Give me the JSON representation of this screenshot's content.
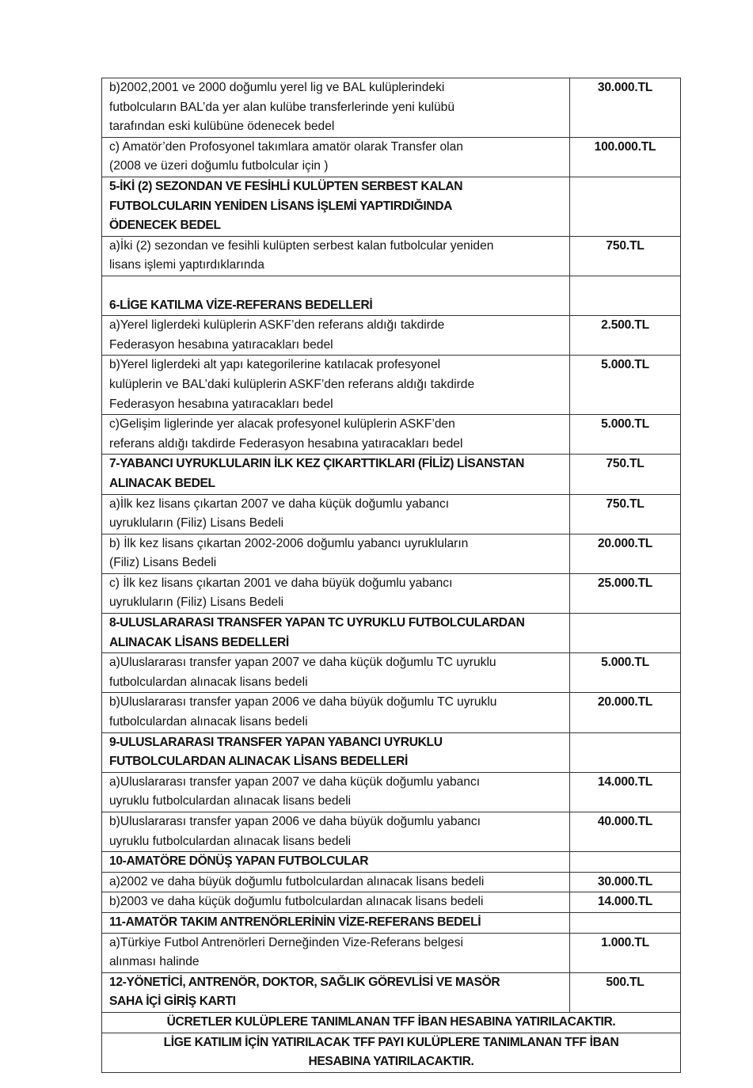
{
  "rows": [
    {
      "text": "b)2002,2001 ve 2000 doğumlu yerel lig ve BAL kulüplerindeki\nfutbolcuların BAL’da yer alan kulübe transferlerinde yeni kulübü\ntarafından eski kulübüne ödenecek bedel",
      "value": "30.000.TL",
      "bold": false
    },
    {
      "text": "c) Amatör’den Profosyonel takımlara amatör olarak Transfer olan\n(2008 ve üzeri doğumlu futbolcular için )",
      "value": "100.000.TL",
      "bold": false
    },
    {
      "text": "5-İKİ (2) SEZONDAN VE FESİHLİ KULÜPTEN SERBEST KALAN\nFUTBOLCULARIN YENİDEN LİSANS İŞLEMİ YAPTIRDIĞINDA\nÖDENECEK BEDEL",
      "value": "",
      "bold": true
    },
    {
      "text": "a)İki (2) sezondan ve fesihli kulüpten serbest kalan futbolcular yeniden\nlisans işlemi yaptırdıklarında",
      "value": "750.TL",
      "bold": false
    },
    {
      "text": "\n6-LİGE KATILMA VİZE-REFERANS BEDELLERİ",
      "value": "",
      "bold": true
    },
    {
      "text": "a)Yerel liglerdeki kulüplerin ASKF’den referans aldığı takdirde\nFederasyon hesabına yatıracakları bedel",
      "value": "2.500.TL",
      "bold": false
    },
    {
      "text": "b)Yerel liglerdeki alt yapı kategorilerine katılacak profesyonel\nkulüplerin ve BAL’daki kulüplerin ASKF’den referans aldığı takdirde\nFederasyon hesabına yatıracakları bedel",
      "value": "5.000.TL",
      "bold": false
    },
    {
      "text": "c)Gelişim liglerinde yer alacak profesyonel kulüplerin ASKF’den\nreferans aldığı takdirde Federasyon hesabına yatıracakları bedel",
      "value": "5.000.TL",
      "bold": false
    },
    {
      "text": "7-YABANCI UYRUKLULARIN İLK KEZ ÇIKARTTIKLARI (FİLİZ) LİSANSTAN\nALINACAK BEDEL",
      "value": "750.TL",
      "bold": true
    },
    {
      "text": "a)İlk kez lisans çıkartan 2007 ve daha küçük doğumlu yabancı\nuyrukluların (Filiz) Lisans Bedeli",
      "value": "750.TL",
      "bold": false
    },
    {
      "text": "b) İlk kez lisans çıkartan 2002-2006 doğumlu yabancı uyrukluların\n(Filiz) Lisans Bedeli",
      "value": "20.000.TL",
      "bold": false
    },
    {
      "text": "c) İlk kez lisans çıkartan 2001 ve daha büyük doğumlu yabancı\nuyrukluların (Filiz) Lisans Bedeli",
      "value": "25.000.TL",
      "bold": false
    },
    {
      "text": "8-ULUSLARARASI TRANSFER YAPAN TC UYRUKLU FUTBOLCULARDAN\nALINACAK LİSANS BEDELLERİ",
      "value": "",
      "bold": true
    },
    {
      "text": "a)Uluslararası transfer yapan 2007 ve daha küçük doğumlu TC uyruklu\nfutbolculardan alınacak lisans bedeli",
      "value": "5.000.TL",
      "bold": false
    },
    {
      "text": "b)Uluslararası transfer yapan 2006 ve daha büyük doğumlu TC uyruklu\nfutbolculardan alınacak lisans bedeli",
      "value": "20.000.TL",
      "bold": false
    },
    {
      "text": "9-ULUSLARARASI TRANSFER YAPAN YABANCI UYRUKLU\nFUTBOLCULARDAN ALINACAK LİSANS BEDELLERİ",
      "value": "",
      "bold": true
    },
    {
      "text": "a)Uluslararası transfer yapan 2007 ve daha küçük doğumlu yabancı\nuyruklu futbolculardan alınacak lisans bedeli",
      "value": "14.000.TL",
      "bold": false
    },
    {
      "text": "b)Uluslararası transfer yapan 2006 ve daha büyük doğumlu yabancı\nuyruklu futbolculardan alınacak lisans bedeli",
      "value": "40.000.TL",
      "bold": false
    },
    {
      "text": "10-AMATÖRE DÖNÜŞ YAPAN FUTBOLCULAR",
      "value": "",
      "bold": true
    },
    {
      "text": "a)2002 ve daha büyük doğumlu futbolculardan alınacak lisans bedeli",
      "value": "30.000.TL",
      "bold": false
    },
    {
      "text": "b)2003 ve daha küçük doğumlu futbolculardan alınacak lisans bedeli",
      "value": "14.000.TL",
      "bold": false
    },
    {
      "text": "11-AMATÖR TAKIM ANTRENÖRLERİNİN VİZE-REFERANS BEDELİ",
      "value": "",
      "bold": true
    },
    {
      "text": "a)Türkiye Futbol Antrenörleri Derneğinden Vize-Referans belgesi\nalınması halinde",
      "value": "1.000.TL",
      "bold": false
    },
    {
      "text": "12-YÖNETİCİ, ANTRENÖR, DOKTOR, SAĞLIK GÖREVLİSİ VE MASÖR\nSAHA İÇİ GİRİŞ KARTI",
      "value": "500.TL",
      "bold": true
    }
  ],
  "notes": [
    "ÜCRETLER KULÜPLERE TANIMLANAN TFF İBAN HESABINA YATIRILACAKTIR.",
    "LİGE KATILIM İÇİN YATIRILACAK TFF PAYI KULÜPLERE TANIMLANAN TFF İBAN\nHESABINA YATIRILACAKTIR."
  ]
}
